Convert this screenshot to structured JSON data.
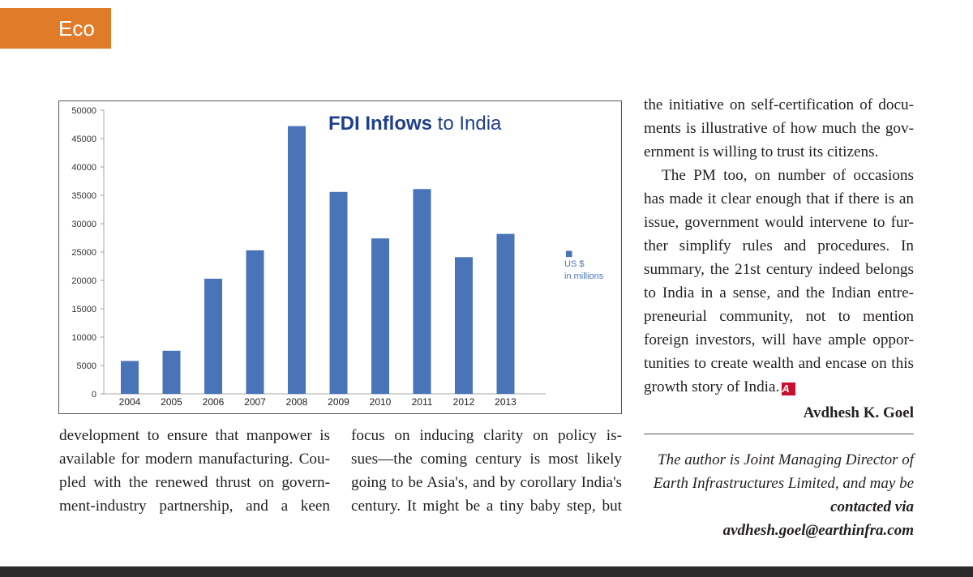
{
  "header": {
    "section_label": "Eco"
  },
  "chart_data": {
    "type": "bar",
    "title_bold": "FDI Inflows",
    "title_rest": " to India",
    "categories": [
      "2004",
      "2005",
      "2006",
      "2007",
      "2008",
      "2009",
      "2010",
      "2011",
      "2012",
      "2013"
    ],
    "values": [
      5800,
      7600,
      20300,
      25300,
      47200,
      35600,
      27400,
      36100,
      24100,
      28200
    ],
    "yticks": [
      "50000",
      "45000",
      "40000",
      "35000",
      "30000",
      "25000",
      "20000",
      "15000",
      "10000",
      "5000",
      "0"
    ],
    "ylim": [
      0,
      50000
    ],
    "legend": {
      "marker": "■",
      "line1": "US $",
      "line2": "in millions"
    },
    "bar_color": "#4a74b8",
    "title_color": "#1f3f8c"
  },
  "article": {
    "left_lines": [
      "development to ensure that manpower is",
      "available for modern manufacturing. Cou-",
      "pled with the renewed thrust on govern-",
      "ment-industry partnership, and a keen"
    ],
    "mid_lines": [
      "focus on inducing clarity on policy is-",
      "sues—the coming century is most likely",
      "going to be Asia's, and by corollary India's",
      "century. It might be a tiny baby step, but"
    ],
    "right_p1_lines": [
      "the initiative on self-certification of docu-",
      "ments is illustrative of how much the gov-",
      "ernment is willing to trust its citizens."
    ],
    "right_p2_lines": [
      "The PM too, on number of occasions",
      "has made it clear enough that if there is an",
      "issue, government would intervene to fur-",
      "ther simplify rules and procedures. In",
      "summary, the 21st century indeed belongs",
      "to India in a sense, and the Indian entre-",
      "preneurial community, not to mention",
      "foreign investors, will have ample oppor-",
      "tunities to create wealth and encase on this",
      "growth story of India."
    ],
    "end_mark": "A",
    "end_mark_color": "#c8102e",
    "author": "Avdhesh K. Goel",
    "bio_line1": "The author is Joint Managing Director of",
    "bio_line2": "Earth Infrastructures Limited, and may be",
    "bio_contact": "contacted via avdhesh.goel@earthinfra.com"
  },
  "colors": {
    "tab": "#e07b2a",
    "bottom_bar": "#2a2a2a"
  }
}
